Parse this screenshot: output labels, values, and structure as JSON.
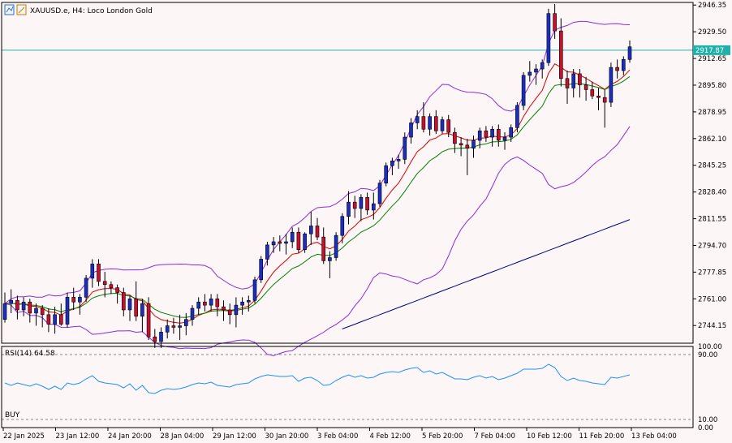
{
  "header": {
    "symbol_label": "XAUUSD.e, H4:  Loco London Gold",
    "icon_names": [
      "chart-mode-icon",
      "chart-scale-icon"
    ]
  },
  "price_axis": {
    "labels": [
      "2946.35",
      "2929.50",
      "2912.65",
      "2895.80",
      "2878.95",
      "2862.10",
      "2845.25",
      "2828.40",
      "2811.55",
      "2794.70",
      "2777.85",
      "2761.00",
      "2744.15"
    ],
    "current_price": "2917.87",
    "ylim": [
      2733.0,
      2948.0
    ]
  },
  "time_axis": {
    "labels": [
      "22 Jan 2025",
      "23 Jan 12:00",
      "24 Jan 20:00",
      "28 Jan 04:00",
      "29 Jan 12:00",
      "30 Jan 20:00",
      "3 Feb 04:00",
      "4 Feb 12:00",
      "5 Feb 20:00",
      "7 Feb 04:00",
      "10 Feb 12:00",
      "11 Feb 20:00",
      "13 Feb 04:00"
    ]
  },
  "rsi_panel": {
    "label": "RSI(14) 64.58",
    "signal_label": "BUY",
    "axis_labels": [
      "100.00",
      "90.00",
      "10.00",
      "0.00"
    ]
  },
  "colors": {
    "background": "#fdf6f6",
    "bull": "#1a2fc2",
    "bear": "#c8102e",
    "wick": "#000000",
    "bollinger": "#8a2be2",
    "ma_fast": "#d90000",
    "ma_mid": "#008000",
    "ma_slow": "#000080",
    "rsi_line": "#1e90ff",
    "price_line": "#20b2aa"
  },
  "chart_data": {
    "type": "candlestick",
    "ohlc": [
      [
        2748,
        2765,
        2746,
        2758
      ],
      [
        2758,
        2767,
        2752,
        2760
      ],
      [
        2760,
        2763,
        2748,
        2754
      ],
      [
        2754,
        2762,
        2750,
        2759
      ],
      [
        2759,
        2761,
        2746,
        2752
      ],
      [
        2752,
        2758,
        2744,
        2755
      ],
      [
        2755,
        2757,
        2743,
        2751
      ],
      [
        2751,
        2755,
        2740,
        2745
      ],
      [
        2745,
        2756,
        2739,
        2751
      ],
      [
        2751,
        2758,
        2744,
        2745
      ],
      [
        2745,
        2765,
        2743,
        2762
      ],
      [
        2762,
        2768,
        2754,
        2759
      ],
      [
        2759,
        2764,
        2751,
        2762
      ],
      [
        2762,
        2776,
        2759,
        2774
      ],
      [
        2774,
        2786,
        2768,
        2783
      ],
      [
        2783,
        2786,
        2769,
        2772
      ],
      [
        2772,
        2778,
        2762,
        2770
      ],
      [
        2770,
        2772,
        2764,
        2768
      ],
      [
        2768,
        2770,
        2758,
        2765
      ],
      [
        2765,
        2768,
        2750,
        2754
      ],
      [
        2754,
        2763,
        2747,
        2761
      ],
      [
        2761,
        2772,
        2747,
        2750
      ],
      [
        2750,
        2761,
        2740,
        2758
      ],
      [
        2758,
        2762,
        2735,
        2737
      ],
      [
        2737,
        2742,
        2730,
        2734
      ],
      [
        2734,
        2743,
        2730,
        2740
      ],
      [
        2740,
        2748,
        2736,
        2744
      ],
      [
        2744,
        2749,
        2739,
        2743
      ],
      [
        2743,
        2751,
        2735,
        2744
      ],
      [
        2744,
        2752,
        2738,
        2748
      ],
      [
        2748,
        2757,
        2744,
        2755
      ],
      [
        2755,
        2762,
        2751,
        2759
      ],
      [
        2759,
        2764,
        2753,
        2757
      ],
      [
        2757,
        2764,
        2753,
        2761
      ],
      [
        2761,
        2764,
        2750,
        2756
      ],
      [
        2756,
        2760,
        2747,
        2754
      ],
      [
        2754,
        2758,
        2745,
        2751
      ],
      [
        2751,
        2762,
        2743,
        2757
      ],
      [
        2757,
        2762,
        2751,
        2759
      ],
      [
        2759,
        2763,
        2753,
        2760
      ],
      [
        2760,
        2775,
        2758,
        2773
      ],
      [
        2773,
        2788,
        2771,
        2786
      ],
      [
        2786,
        2797,
        2782,
        2795
      ],
      [
        2795,
        2800,
        2790,
        2797
      ],
      [
        2797,
        2801,
        2791,
        2796
      ],
      [
        2796,
        2802,
        2789,
        2797
      ],
      [
        2797,
        2806,
        2793,
        2803
      ],
      [
        2803,
        2806,
        2790,
        2792
      ],
      [
        2792,
        2803,
        2790,
        2802
      ],
      [
        2802,
        2816,
        2795,
        2807
      ],
      [
        2807,
        2812,
        2798,
        2800
      ],
      [
        2800,
        2806,
        2783,
        2785
      ],
      [
        2785,
        2791,
        2774,
        2787
      ],
      [
        2787,
        2803,
        2785,
        2801
      ],
      [
        2801,
        2815,
        2796,
        2813
      ],
      [
        2813,
        2829,
        2808,
        2822
      ],
      [
        2822,
        2826,
        2812,
        2818
      ],
      [
        2818,
        2827,
        2810,
        2825
      ],
      [
        2825,
        2828,
        2814,
        2817
      ],
      [
        2817,
        2828,
        2811,
        2821
      ],
      [
        2821,
        2836,
        2819,
        2834
      ],
      [
        2834,
        2847,
        2832,
        2845
      ],
      [
        2845,
        2850,
        2839,
        2848
      ],
      [
        2848,
        2852,
        2843,
        2849
      ],
      [
        2849,
        2866,
        2846,
        2863
      ],
      [
        2863,
        2875,
        2859,
        2872
      ],
      [
        2872,
        2880,
        2868,
        2876
      ],
      [
        2876,
        2885,
        2866,
        2868
      ],
      [
        2868,
        2878,
        2864,
        2876
      ],
      [
        2876,
        2880,
        2865,
        2867
      ],
      [
        2867,
        2876,
        2865,
        2874
      ],
      [
        2874,
        2877,
        2863,
        2866
      ],
      [
        2866,
        2869,
        2853,
        2859
      ],
      [
        2859,
        2863,
        2851,
        2858
      ],
      [
        2858,
        2862,
        2839,
        2856
      ],
      [
        2856,
        2864,
        2850,
        2861
      ],
      [
        2861,
        2869,
        2856,
        2867
      ],
      [
        2867,
        2870,
        2860,
        2863
      ],
      [
        2863,
        2870,
        2857,
        2868
      ],
      [
        2868,
        2871,
        2857,
        2861
      ],
      [
        2861,
        2866,
        2855,
        2863
      ],
      [
        2863,
        2871,
        2860,
        2869
      ],
      [
        2869,
        2885,
        2866,
        2883
      ],
      [
        2883,
        2904,
        2880,
        2902
      ],
      [
        2902,
        2911,
        2898,
        2904
      ],
      [
        2904,
        2909,
        2896,
        2906
      ],
      [
        2906,
        2912,
        2900,
        2910
      ],
      [
        2910,
        2944,
        2908,
        2941
      ],
      [
        2941,
        2947,
        2925,
        2930
      ],
      [
        2930,
        2938,
        2895,
        2900
      ],
      [
        2900,
        2905,
        2884,
        2894
      ],
      [
        2894,
        2906,
        2888,
        2903
      ],
      [
        2903,
        2906,
        2888,
        2896
      ],
      [
        2896,
        2901,
        2886,
        2893
      ],
      [
        2893,
        2898,
        2887,
        2889
      ],
      [
        2889,
        2894,
        2880,
        2888
      ],
      [
        2888,
        2893,
        2869,
        2885
      ],
      [
        2885,
        2910,
        2882,
        2907
      ],
      [
        2907,
        2912,
        2900,
        2905
      ],
      [
        2905,
        2914,
        2902,
        2912
      ],
      [
        2912,
        2924,
        2910,
        2920
      ]
    ],
    "rsi": [
      55,
      52,
      55,
      53,
      51,
      54,
      51,
      47,
      51,
      47,
      55,
      53,
      55,
      60,
      64,
      57,
      55,
      54,
      53,
      49,
      54,
      46,
      52,
      43,
      42,
      46,
      48,
      47,
      48,
      50,
      53,
      55,
      54,
      56,
      52,
      51,
      50,
      53,
      54,
      55,
      60,
      63,
      65,
      64,
      63,
      63,
      64,
      57,
      61,
      62,
      58,
      52,
      53,
      58,
      62,
      65,
      62,
      64,
      61,
      62,
      66,
      68,
      69,
      68,
      71,
      73,
      74,
      68,
      70,
      66,
      68,
      64,
      60,
      60,
      59,
      62,
      64,
      61,
      63,
      59,
      61,
      64,
      67,
      72,
      72,
      72,
      73,
      78,
      74,
      63,
      58,
      61,
      58,
      57,
      55,
      54,
      53,
      62,
      61,
      63,
      65
    ],
    "ylim": [
      2733.0,
      2948.0
    ],
    "rsi_ylim": [
      0,
      100
    ]
  }
}
